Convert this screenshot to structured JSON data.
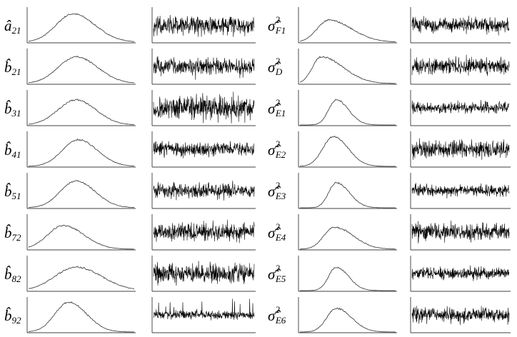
{
  "rows": [
    {
      "left": {
        "symbol": "â",
        "sub": "21"
      },
      "right": {
        "symbol": "σ̂",
        "sup": "2",
        "sub": "F1"
      }
    },
    {
      "left": {
        "symbol": "b̂",
        "sub": "21"
      },
      "right": {
        "symbol": "σ̂",
        "sup": "2",
        "sub": "D"
      }
    },
    {
      "left": {
        "symbol": "b̂",
        "sub": "31"
      },
      "right": {
        "symbol": "σ̂",
        "sup": "2",
        "sub": "E1"
      }
    },
    {
      "left": {
        "symbol": "b̂",
        "sub": "41"
      },
      "right": {
        "symbol": "σ̂",
        "sup": "2",
        "sub": "E2"
      }
    },
    {
      "left": {
        "symbol": "b̂",
        "sub": "51"
      },
      "right": {
        "symbol": "σ̂",
        "sup": "2",
        "sub": "E3"
      }
    },
    {
      "left": {
        "symbol": "b̂",
        "sub": "72"
      },
      "right": {
        "symbol": "σ̂",
        "sup": "2",
        "sub": "E4"
      }
    },
    {
      "left": {
        "symbol": "b̂",
        "sub": "82"
      },
      "right": {
        "symbol": "σ̂",
        "sup": "2",
        "sub": "E5"
      }
    },
    {
      "left": {
        "symbol": "b̂",
        "sub": "92"
      },
      "right": {
        "symbol": "σ̂",
        "sup": "2",
        "sub": "E6"
      }
    }
  ]
}
